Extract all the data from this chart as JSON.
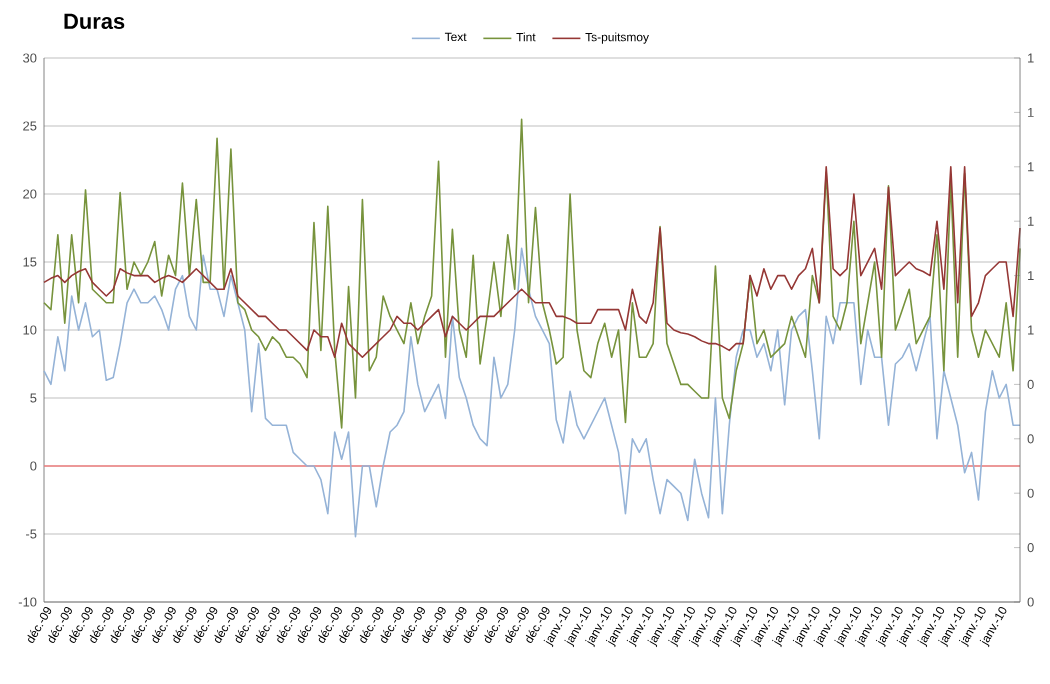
{
  "chart_data": {
    "type": "line",
    "title": "Duras",
    "categories": [
      "déc.-09",
      null,
      null,
      "déc.-09",
      null,
      null,
      "déc.-09",
      null,
      null,
      "déc.-09",
      null,
      null,
      "déc.-09",
      null,
      null,
      "déc.-09",
      null,
      null,
      "déc.-09",
      null,
      null,
      "déc.-09",
      null,
      null,
      "déc.-09",
      null,
      null,
      "déc.-09",
      null,
      null,
      "déc.-09",
      null,
      null,
      "déc.-09",
      null,
      null,
      "déc.-09",
      null,
      null,
      "déc.-09",
      null,
      null,
      "déc.-09",
      null,
      null,
      "déc.-09",
      null,
      null,
      "déc.-09",
      null,
      null,
      "déc.-09",
      null,
      null,
      "déc.-09",
      null,
      null,
      "déc.-09",
      null,
      null,
      "déc.-09",
      null,
      null,
      "déc.-09",
      null,
      null,
      "déc.-09",
      null,
      null,
      "déc.-09",
      null,
      null,
      "déc.-09",
      null,
      null,
      "janv.-10",
      null,
      null,
      "janv.-10",
      null,
      null,
      "janv.-10",
      null,
      null,
      "janv.-10",
      null,
      null,
      "janv.-10",
      null,
      null,
      "janv.-10",
      null,
      null,
      "janv.-10",
      null,
      null,
      "janv.-10",
      null,
      null,
      "janv.-10",
      null,
      null,
      "janv.-10",
      null,
      null,
      "janv.-10",
      null,
      null,
      "janv.-10",
      null,
      null,
      "janv.-10",
      null,
      null,
      "janv.-10",
      null,
      null,
      "janv.-10",
      null,
      null,
      "janv.-10",
      null,
      null,
      "janv.-10",
      null,
      null,
      "janv.-10",
      null,
      null,
      "janv.-10",
      null,
      null,
      "janv.-10",
      null,
      null,
      "janv.-10",
      null,
      null,
      "janv.-10",
      null,
      null,
      null
    ],
    "ylim": [
      -10,
      30
    ],
    "yticks": [
      -10,
      -5,
      0,
      5,
      10,
      15,
      20,
      25,
      30
    ],
    "y2lim": [
      0,
      1
    ],
    "y2ticks": [
      {
        "value": 0,
        "label": "0"
      },
      {
        "value": 0.1,
        "label": "0"
      },
      {
        "value": 0.2,
        "label": "0"
      },
      {
        "value": 0.3,
        "label": "0"
      },
      {
        "value": 0.4,
        "label": "0"
      },
      {
        "value": 0.5,
        "label": "1"
      },
      {
        "value": 0.6,
        "label": "1"
      },
      {
        "value": 0.7,
        "label": "1"
      },
      {
        "value": 0.8,
        "label": "1"
      },
      {
        "value": 0.9,
        "label": "1"
      },
      {
        "value": 1,
        "label": "1"
      }
    ],
    "grid": "y",
    "legend": "top",
    "ref_lines": [
      {
        "axis": "y",
        "value": 0,
        "color": "#f08080"
      }
    ],
    "series": [
      {
        "name": "Text",
        "color": "#95b3d7",
        "values": [
          7,
          6,
          9.5,
          7,
          12.5,
          10,
          12,
          9.5,
          10,
          6.3,
          6.5,
          9,
          12,
          13,
          12,
          12,
          12.5,
          11.5,
          10,
          13,
          14,
          11,
          10,
          15.5,
          13,
          13,
          11,
          14,
          12,
          10,
          4,
          9,
          3.5,
          3,
          3,
          3,
          1,
          0.5,
          0,
          0,
          -1,
          -3.5,
          2.5,
          0.5,
          2.5,
          -5.2,
          0,
          0,
          -3,
          0,
          2.5,
          3,
          4,
          9.5,
          6,
          4,
          5,
          6,
          3.5,
          11,
          6.5,
          5,
          3,
          2,
          1.5,
          8,
          5,
          6,
          10,
          16,
          13,
          11,
          10,
          9,
          3.4,
          1.7,
          5.5,
          3,
          2,
          3,
          4,
          5,
          3,
          1,
          -3.5,
          2,
          1,
          2,
          -1,
          -3.5,
          -1,
          -1.5,
          -2,
          -4,
          0.5,
          -2,
          -3.8,
          5,
          -3.5,
          3,
          8,
          10,
          10,
          8,
          9,
          7,
          10,
          4.5,
          10,
          11,
          11.5,
          7,
          2,
          11,
          9,
          12,
          12,
          12,
          6,
          10,
          8,
          8,
          3,
          7.5,
          8,
          9,
          7,
          9,
          11,
          2,
          7,
          5,
          3,
          -0.5,
          1,
          -2.5,
          4,
          7,
          5,
          6,
          3,
          3
        ]
      },
      {
        "name": "Tint",
        "color": "#77933c",
        "values": [
          12,
          11.5,
          17,
          10.5,
          17,
          12,
          20.3,
          13,
          12.5,
          12,
          12,
          20.1,
          13,
          15,
          14,
          15,
          16.5,
          12.5,
          15.5,
          14,
          20.8,
          14,
          19.6,
          13.5,
          13.5,
          24.1,
          13,
          23.3,
          12,
          11.5,
          10,
          9.5,
          8.5,
          9.5,
          9,
          8,
          8,
          7.5,
          6.5,
          17.9,
          8.5,
          19.1,
          8.5,
          2.8,
          13.2,
          5,
          19.6,
          7,
          8,
          12.5,
          11,
          10,
          9,
          12,
          9,
          11,
          12.5,
          22.4,
          8,
          17.4,
          10,
          8,
          15.5,
          7.5,
          11,
          15,
          11,
          17,
          13,
          25.5,
          12,
          19,
          12,
          10,
          7.5,
          8,
          20,
          10,
          7,
          6.5,
          9,
          10.5,
          8,
          10,
          3.2,
          12,
          8,
          8,
          9,
          17.6,
          9,
          7.5,
          6,
          6,
          5.5,
          5,
          5,
          14.7,
          5,
          3.5,
          7,
          9,
          14,
          9,
          10,
          8,
          8.5,
          9,
          11,
          9.5,
          8,
          14,
          12,
          21.6,
          11,
          10,
          12,
          18,
          9,
          12,
          15,
          8,
          20.6,
          10,
          11.5,
          13,
          9,
          10,
          11,
          17,
          7,
          21,
          8,
          21.5,
          10,
          8,
          10,
          9,
          8,
          12,
          7,
          16
        ]
      },
      {
        "name": "Ts-puitsmoy",
        "color": "#953735",
        "values": [
          13.5,
          13.8,
          14,
          13.5,
          14,
          14.3,
          14.5,
          13.5,
          13,
          12.5,
          13,
          14.5,
          14.2,
          14,
          14,
          14,
          13.5,
          13.8,
          14,
          13.8,
          13.5,
          14,
          14.5,
          14,
          13.5,
          13,
          13,
          14.5,
          12.5,
          12,
          11.5,
          11,
          11,
          10.5,
          10,
          10,
          9.5,
          9,
          8.5,
          10,
          9.5,
          9.5,
          8,
          10.5,
          9,
          8.5,
          8,
          8.5,
          9,
          9.5,
          10,
          11,
          10.5,
          10.5,
          10,
          10.5,
          11,
          11.5,
          9.5,
          11,
          10.5,
          10,
          10.5,
          11,
          11,
          11,
          11.5,
          12,
          12.5,
          13,
          12.5,
          12,
          12,
          12,
          11,
          11,
          10.8,
          10.5,
          10.5,
          10.5,
          11.5,
          11.5,
          11.5,
          11.5,
          10,
          13,
          11,
          10.5,
          12,
          17.5,
          10.5,
          10,
          9.8,
          9.7,
          9.5,
          9.2,
          9,
          9,
          8.8,
          8.5,
          9,
          9,
          14,
          12.5,
          14.5,
          13,
          14,
          14,
          13,
          14,
          14.5,
          16,
          12,
          22,
          14.5,
          14,
          14.5,
          20,
          14,
          15,
          16,
          13,
          20.5,
          14,
          14.5,
          15,
          14.5,
          14.3,
          14,
          18,
          13,
          22,
          12,
          22,
          11,
          12,
          14,
          14.5,
          15,
          15,
          11,
          17.5
        ]
      }
    ]
  }
}
